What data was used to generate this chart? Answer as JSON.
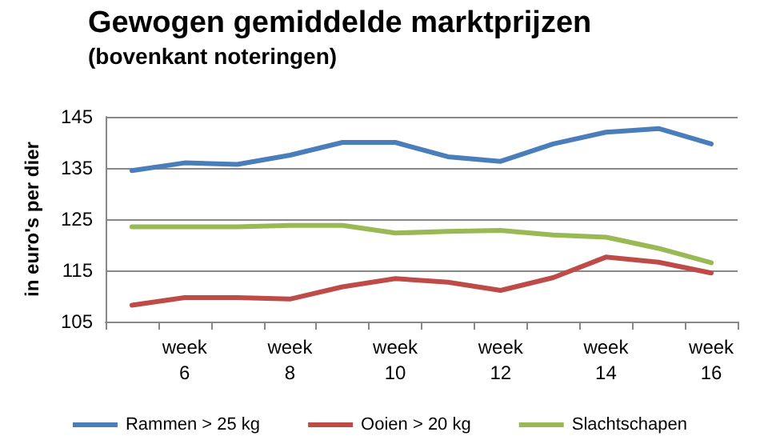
{
  "chart_data": {
    "type": "line",
    "title": "Gewogen gemiddelde marktprijzen",
    "subtitle": "(bovenkant noteringen)",
    "ylabel": "in euro's per dier",
    "categories": [
      null,
      "week 6",
      null,
      "week 8",
      null,
      "week 10",
      null,
      "week 12",
      null,
      "week 14",
      null,
      "week 16"
    ],
    "series": [
      {
        "name": "Rammen > 25 kg",
        "color": "#4a7ebb",
        "values": [
          134.5,
          136,
          135.7,
          137.5,
          140,
          140,
          137.2,
          136.3,
          139.7,
          142,
          142.7,
          139.7
        ]
      },
      {
        "name": "Ooien > 20 kg",
        "color": "#be4b48",
        "values": [
          108.2,
          109.7,
          109.7,
          109.4,
          111.8,
          113.4,
          112.7,
          111.1,
          113.6,
          117.6,
          116.6,
          114.5
        ]
      },
      {
        "name": "Slachtschapen",
        "color": "#98b954",
        "values": [
          123.5,
          123.5,
          123.5,
          123.8,
          123.8,
          122.3,
          122.6,
          122.8,
          121.9,
          121.5,
          119.3,
          116.5
        ]
      }
    ],
    "ylim": [
      105,
      145
    ],
    "yticks": [
      105,
      115,
      125,
      135,
      145
    ],
    "grid": "y",
    "legend": "bottom",
    "marker": "none",
    "line_style": "solid"
  }
}
